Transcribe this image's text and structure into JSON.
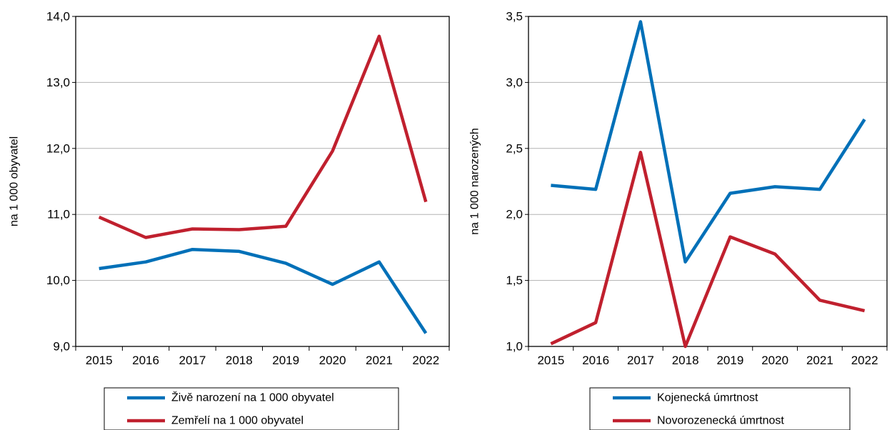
{
  "chart_data": [
    {
      "type": "line",
      "ylabel": "na 1 000 obyvatel",
      "ylim": [
        9.0,
        14.0
      ],
      "yticks": [
        "9,0",
        "10,0",
        "11,0",
        "12,0",
        "13,0",
        "14,0"
      ],
      "categories": [
        "2015",
        "2016",
        "2017",
        "2018",
        "2019",
        "2020",
        "2021",
        "2022"
      ],
      "grid": true,
      "legend": "bottom",
      "series": [
        {
          "name": "Živě narození na 1 000 obyvatel",
          "color": "#0070b8",
          "values": [
            10.18,
            10.28,
            10.47,
            10.44,
            10.26,
            9.94,
            10.28,
            9.2
          ]
        },
        {
          "name": "Zemřelí na 1 000 obyvatel",
          "color": "#c0202e",
          "values": [
            10.96,
            10.65,
            10.78,
            10.77,
            10.82,
            11.96,
            13.7,
            11.19
          ]
        }
      ]
    },
    {
      "type": "line",
      "ylabel": "na 1 000 narozených",
      "ylim": [
        1.0,
        3.5
      ],
      "yticks": [
        "1,0",
        "1,5",
        "2,0",
        "2,5",
        "3,0",
        "3,5"
      ],
      "categories": [
        "2015",
        "2016",
        "2017",
        "2018",
        "2019",
        "2020",
        "2021",
        "2022"
      ],
      "grid": true,
      "legend": "bottom",
      "series": [
        {
          "name": "Kojenecká úmrtnost",
          "color": "#0070b8",
          "values": [
            2.22,
            2.19,
            3.46,
            1.64,
            2.16,
            2.21,
            2.19,
            2.72
          ]
        },
        {
          "name": "Novorozenecká úmrtnost",
          "color": "#c0202e",
          "values": [
            1.02,
            1.18,
            2.47,
            1.0,
            1.83,
            1.7,
            1.35,
            1.27
          ]
        }
      ]
    }
  ]
}
